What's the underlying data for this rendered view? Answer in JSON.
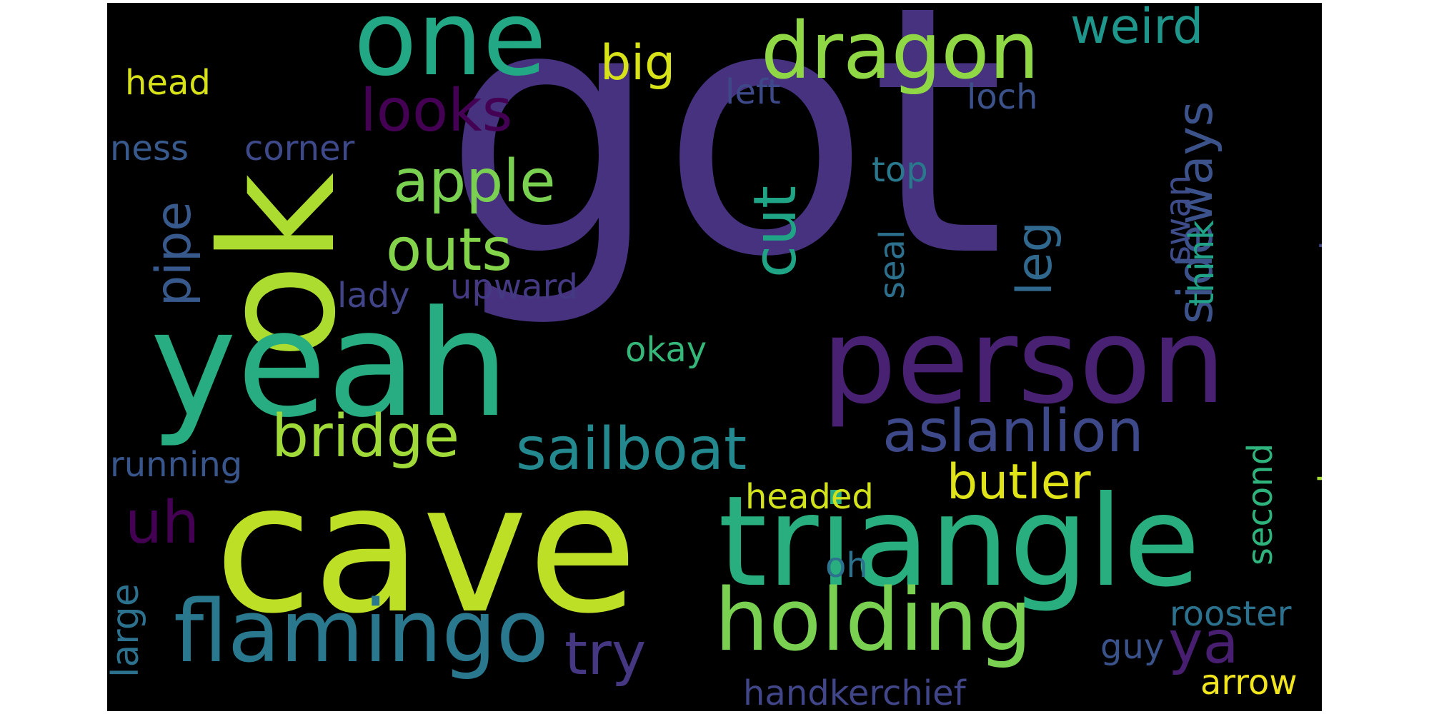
{
  "word_cloud": {
    "background_color": "#000000",
    "words": [
      {
        "text": "got",
        "color": "#46327e"
      },
      {
        "text": "cave",
        "color": "#bddf26"
      },
      {
        "text": "ok",
        "color": "#addc30"
      },
      {
        "text": "triangle",
        "color": "#29af7f"
      },
      {
        "text": "yeah",
        "color": "#27ad81"
      },
      {
        "text": "person",
        "color": "#482173"
      },
      {
        "text": "holding",
        "color": "#7ad151"
      },
      {
        "text": "one",
        "color": "#22a884"
      },
      {
        "text": "flamingo",
        "color": "#2a788e"
      },
      {
        "text": "dragon",
        "color": "#8fd744"
      },
      {
        "text": "sailboat",
        "color": "#23898e"
      },
      {
        "text": "aslanlion",
        "color": "#3e4989"
      },
      {
        "text": "bridge",
        "color": "#a0da39"
      },
      {
        "text": "looks",
        "color": "#440154"
      },
      {
        "text": "apple",
        "color": "#7ad151"
      },
      {
        "text": "outs",
        "color": "#84d44b"
      },
      {
        "text": "sideways",
        "color": "#3b528b"
      },
      {
        "text": "butler",
        "color": "#dfe318"
      },
      {
        "text": "cut",
        "color": "#20a486"
      },
      {
        "text": "pipe",
        "color": "#38598c"
      },
      {
        "text": "big",
        "color": "#d8e219"
      },
      {
        "text": "try",
        "color": "#453781"
      },
      {
        "text": "ya",
        "color": "#481f70"
      },
      {
        "text": "uh",
        "color": "#440154"
      },
      {
        "text": "leg",
        "color": "#31688e"
      },
      {
        "text": "weird",
        "color": "#1f968b"
      },
      {
        "text": "large",
        "color": "#2c728e"
      },
      {
        "text": "running",
        "color": "#39568c"
      },
      {
        "text": "upward",
        "color": "#443983"
      },
      {
        "text": "lady",
        "color": "#414487"
      },
      {
        "text": "headed",
        "color": "#d2e21b"
      },
      {
        "text": "okay",
        "color": "#35b779"
      },
      {
        "text": "top",
        "color": "#2a788e"
      },
      {
        "text": "loch",
        "color": "#3b528b"
      },
      {
        "text": "left",
        "color": "#3e4989"
      },
      {
        "text": "head",
        "color": "#d8e219"
      },
      {
        "text": "ness",
        "color": "#38598c"
      },
      {
        "text": "corner",
        "color": "#3e4989"
      },
      {
        "text": "seal",
        "color": "#2d708e"
      },
      {
        "text": "swan",
        "color": "#3e4c8a"
      },
      {
        "text": "think",
        "color": "#20a386"
      },
      {
        "text": "monster",
        "color": "#3f4788"
      },
      {
        "text": "second",
        "color": "#2eb37c"
      },
      {
        "text": "dress",
        "color": "#a5db36"
      },
      {
        "text": "oh",
        "color": "#2c728e"
      },
      {
        "text": "rooster",
        "color": "#2c728e"
      },
      {
        "text": "guy",
        "color": "#3a538b"
      },
      {
        "text": "handkerchief",
        "color": "#404688"
      },
      {
        "text": "arrow",
        "color": "#f1e51d"
      }
    ]
  }
}
